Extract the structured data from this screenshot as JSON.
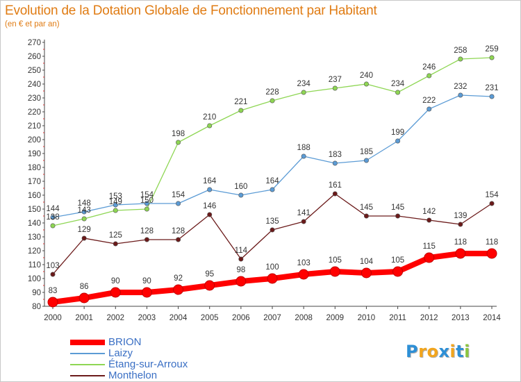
{
  "chart_data": {
    "type": "line",
    "title": "Evolution de la Dotation Globale de Fonctionnement par Habitant",
    "subtitle": "(en € et par an)",
    "x": [
      "2000",
      "2001",
      "2002",
      "2003",
      "2004",
      "2005",
      "2006",
      "2007",
      "2008",
      "2009",
      "2010",
      "2011",
      "2012",
      "2013",
      "2014"
    ],
    "yticks": [
      80,
      90,
      100,
      110,
      120,
      130,
      140,
      150,
      160,
      170,
      180,
      190,
      200,
      210,
      220,
      230,
      240,
      250,
      260,
      270
    ],
    "ylim": [
      80,
      270
    ],
    "grid": false,
    "legend_position": "bottom-left",
    "series": [
      {
        "name": "BRION",
        "color": "#ff0000",
        "values": [
          83,
          86,
          90,
          90,
          92,
          95,
          98,
          100,
          103,
          105,
          104,
          105,
          115,
          118,
          118
        ]
      },
      {
        "name": "Laizy",
        "color": "#5b9bd5",
        "values": [
          144,
          148,
          153,
          154,
          154,
          164,
          160,
          164,
          188,
          183,
          185,
          199,
          222,
          232,
          231
        ]
      },
      {
        "name": "Étang-sur-Arroux",
        "color": "#8ed653",
        "values": [
          138,
          143,
          149,
          150,
          198,
          210,
          221,
          228,
          234,
          237,
          240,
          234,
          246,
          258,
          259
        ]
      },
      {
        "name": "Monthelon",
        "color": "#6b1a1a",
        "values": [
          103,
          129,
          125,
          128,
          128,
          146,
          114,
          135,
          141,
          161,
          145,
          145,
          142,
          139,
          154
        ]
      }
    ]
  },
  "logo": {
    "letters": [
      "P",
      "r",
      "o",
      "x",
      "i",
      "t",
      "i"
    ],
    "colors": [
      "#2d8fd6",
      "#f2a51d",
      "#f2a51d",
      "#2d8fd6",
      "#f2a51d",
      "#2d8fd6",
      "#8cc63f"
    ]
  }
}
